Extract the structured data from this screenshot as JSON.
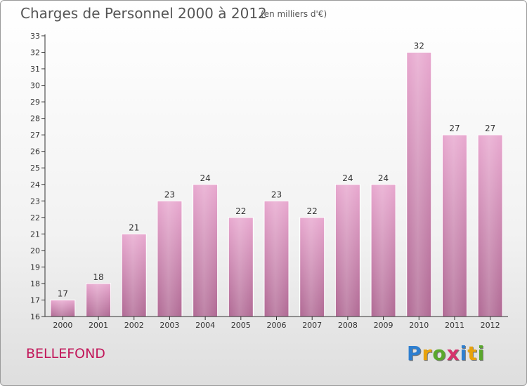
{
  "header": {
    "title": "Charges de Personnel 2000 à 2012",
    "subtitle": "(en milliers d'€)"
  },
  "commune": "BELLEFOND",
  "logo": {
    "text": "Proxiti",
    "letters": [
      {
        "char": "P",
        "color": "#2e7fd0"
      },
      {
        "char": "r",
        "color": "#e8a20c"
      },
      {
        "char": "o",
        "color": "#5aa82c"
      },
      {
        "char": "x",
        "color": "#d6336c"
      },
      {
        "char": "i",
        "color": "#2e7fd0"
      },
      {
        "char": "t",
        "color": "#e8a20c"
      },
      {
        "char": "i",
        "color": "#5aa82c"
      }
    ]
  },
  "colors": {
    "bar_top": "#e8a8cf",
    "bar_bottom": "#b06a94",
    "axis": "#333333",
    "text": "#333333"
  },
  "chart_data": {
    "type": "bar",
    "title": "Charges de Personnel 2000 à 2012",
    "subtitle": "(en milliers d'€)",
    "xlabel": "",
    "ylabel": "",
    "categories": [
      "2000",
      "2001",
      "2002",
      "2003",
      "2004",
      "2005",
      "2006",
      "2007",
      "2008",
      "2009",
      "2010",
      "2011",
      "2012"
    ],
    "values": [
      17,
      18,
      21,
      23,
      24,
      22,
      23,
      22,
      24,
      24,
      32,
      27,
      27
    ],
    "ylim": [
      16,
      33
    ],
    "yticks": [
      16,
      17,
      18,
      19,
      20,
      21,
      22,
      23,
      24,
      25,
      26,
      27,
      28,
      29,
      30,
      31,
      32,
      33
    ],
    "data_labels": true,
    "grid": false,
    "legend": "none"
  }
}
